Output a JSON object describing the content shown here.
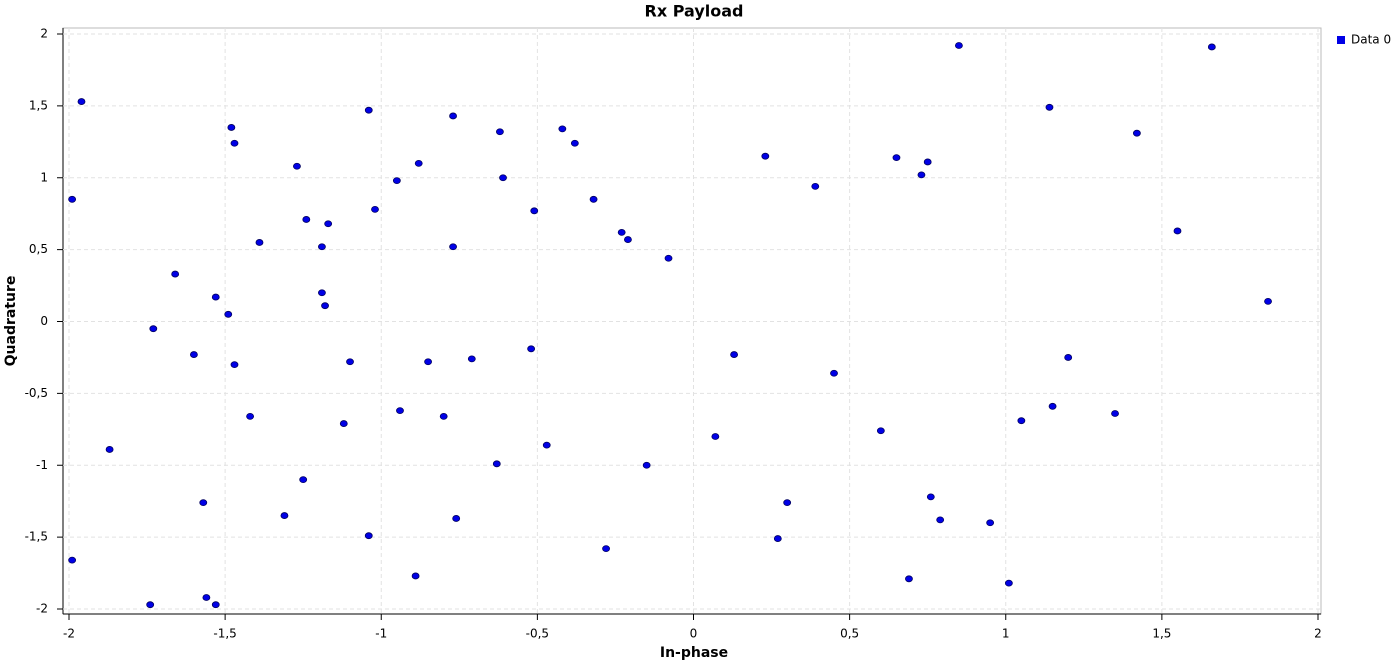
{
  "chart_data": {
    "type": "scatter",
    "title": "Rx Payload",
    "x_label": "In-phase",
    "y_label": "Quadrature",
    "xlim": [
      -2,
      2
    ],
    "ylim": [
      -2,
      2
    ],
    "xticks": [
      -2,
      {
        "value": -1.5,
        "label": "-1,5"
      },
      -1,
      {
        "value": -0.5,
        "label": "-0,5"
      },
      0,
      {
        "value": 0.5,
        "label": "0,5"
      },
      1,
      {
        "value": 1.5,
        "label": "1,5"
      },
      2
    ],
    "yticks": [
      -2,
      {
        "value": -1.5,
        "label": "-1,5"
      },
      -1,
      {
        "value": -0.5,
        "label": "-0,5"
      },
      0,
      {
        "value": 0.5,
        "label": "0,5"
      },
      1,
      {
        "value": 1.5,
        "label": "1,5"
      },
      2
    ],
    "grid": true,
    "legend": "top-right",
    "series": [
      {
        "name": "Data 0",
        "color": "#0000e6",
        "x": [
          -1.99,
          -1.96,
          -1.99,
          -1.87,
          -1.74,
          -1.73,
          -1.66,
          -1.6,
          -1.57,
          -1.56,
          -1.53,
          -1.53,
          -1.49,
          -1.48,
          -1.47,
          -1.47,
          -1.42,
          -1.39,
          -1.31,
          -1.27,
          -1.25,
          -1.24,
          -1.19,
          -1.19,
          -1.18,
          -1.17,
          -1.12,
          -1.1,
          -1.04,
          -1.04,
          -1.02,
          -0.95,
          -0.94,
          -0.89,
          -0.88,
          -0.85,
          -0.8,
          -0.77,
          -0.77,
          -0.76,
          -0.71,
          -0.63,
          -0.62,
          -0.61,
          -0.52,
          -0.51,
          -0.47,
          -0.42,
          -0.38,
          -0.32,
          -0.28,
          -0.23,
          -0.21,
          -0.15,
          -0.08,
          0.07,
          0.13,
          0.23,
          0.27,
          0.3,
          0.39,
          0.45,
          0.6,
          0.65,
          0.69,
          0.73,
          0.75,
          0.76,
          0.79,
          0.85,
          0.95,
          1.01,
          1.05,
          1.14,
          1.15,
          1.2,
          1.35,
          1.42,
          1.55,
          1.66,
          1.84
        ],
        "values": [
          0.85,
          1.53,
          -1.66,
          -0.89,
          -1.97,
          -0.05,
          0.33,
          -0.23,
          -1.26,
          -1.92,
          0.17,
          -1.97,
          0.05,
          1.35,
          1.24,
          -0.3,
          -0.66,
          0.55,
          -1.35,
          1.08,
          -1.1,
          0.71,
          0.52,
          0.2,
          0.11,
          0.68,
          -0.71,
          -0.28,
          1.47,
          -1.49,
          0.78,
          0.98,
          -0.62,
          -1.77,
          1.1,
          -0.28,
          -0.66,
          0.52,
          1.43,
          -1.37,
          -0.26,
          -0.99,
          1.32,
          1.0,
          -0.19,
          0.77,
          -0.86,
          1.34,
          1.24,
          0.85,
          -1.58,
          0.62,
          0.57,
          -1.0,
          0.44,
          -0.8,
          -0.23,
          1.15,
          -1.51,
          -1.26,
          0.94,
          -0.36,
          -0.76,
          1.14,
          -1.79,
          1.02,
          1.11,
          -1.22,
          -1.38,
          1.92,
          -1.4,
          -1.82,
          -0.69,
          1.49,
          -0.59,
          -0.25,
          -0.64,
          1.31,
          0.63,
          1.91,
          0.14
        ]
      }
    ]
  }
}
